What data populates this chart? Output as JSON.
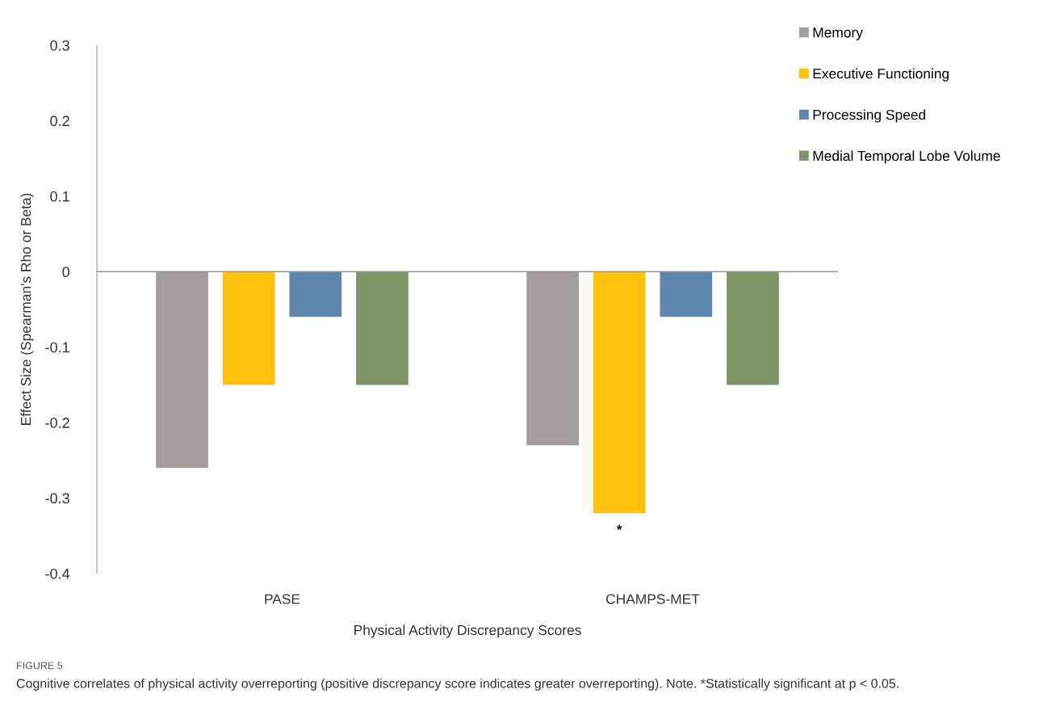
{
  "chart_data": {
    "type": "bar",
    "xlabel": "Physical Activity Discrepancy Scores",
    "ylabel": "Effect Size (Spearman's Rho or Beta)",
    "categories": [
      "PASE",
      "CHAMPS-MET"
    ],
    "series": [
      {
        "name": "Memory",
        "color": "#a59d9a",
        "values": [
          -0.26,
          -0.23
        ]
      },
      {
        "name": "Executive Functioning",
        "color": "#fec10e",
        "values": [
          -0.15,
          -0.32
        ]
      },
      {
        "name": "Processing Speed",
        "color": "#5f87ae",
        "values": [
          -0.06,
          -0.06
        ]
      },
      {
        "name": "Medial Temporal Lobe Volume",
        "color": "#7f9565",
        "values": [
          -0.15,
          -0.15
        ]
      }
    ],
    "ylim": [
      -0.4,
      0.3
    ],
    "yticks": [
      -0.4,
      -0.3,
      -0.2,
      -0.1,
      0,
      0.1,
      0.2,
      0.3
    ],
    "grid": false,
    "ref_lines": [
      {
        "axis": "y",
        "value": 0,
        "color": "#999999"
      }
    ],
    "legend": "right",
    "annotations": [
      "*",
      "FIGURE 5",
      "Cognitive correlates of physical activity overreporting (positive discrepancy score indicates greater overreporting). Note. *Statistically significant at p < 0.05."
    ]
  }
}
